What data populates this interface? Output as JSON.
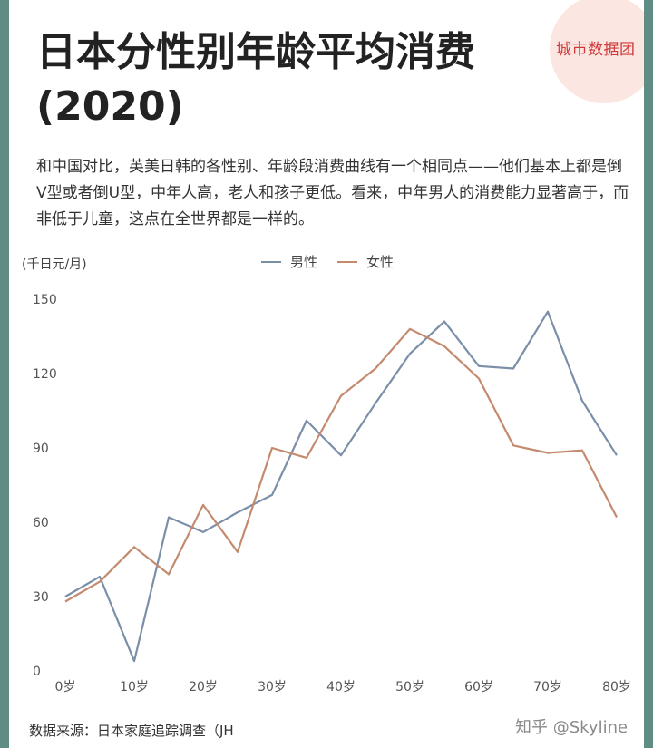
{
  "header": {
    "title": "日本分性别年龄平均消费(2020)",
    "brand": "城市数据团"
  },
  "description": "和中国对比，英美日韩的各性别、年龄段消费曲线有一个相同点——他们基本上都是倒V型或者倒U型，中年人高，老人和孩子更低。看来，中年男人的消费能力显著高于，而非低于儿童，这点在全世界都是一样的。",
  "footer": {
    "source": "数据来源：日本家庭追踪调查（JH",
    "credit": "知乎 @Skyline"
  },
  "colors": {
    "male": "#7b8fa8",
    "female": "#c48a6e"
  },
  "chart_data": {
    "type": "line",
    "unit_label": "(千日元/月)",
    "ylim": [
      0,
      150
    ],
    "yticks": [
      0,
      30,
      60,
      90,
      120,
      150
    ],
    "xlim": [
      0,
      80
    ],
    "xticks": [
      0,
      10,
      20,
      30,
      40,
      50,
      60,
      70,
      80
    ],
    "xtick_suffix": "岁",
    "legend_position": "top",
    "grid": false,
    "series": [
      {
        "name": "男性",
        "x": [
          0,
          5,
          10,
          15,
          20,
          25,
          30,
          35,
          40,
          45,
          50,
          55,
          60,
          65,
          70,
          75,
          80
        ],
        "values": [
          30,
          38,
          4,
          62,
          56,
          64,
          71,
          101,
          87,
          108,
          128,
          141,
          123,
          122,
          145,
          109,
          87
        ]
      },
      {
        "name": "女性",
        "x": [
          0,
          5,
          10,
          15,
          20,
          25,
          30,
          35,
          40,
          45,
          50,
          55,
          60,
          65,
          70,
          75,
          80
        ],
        "values": [
          28,
          36,
          50,
          39,
          67,
          48,
          90,
          86,
          111,
          122,
          138,
          131,
          118,
          91,
          88,
          89,
          62
        ]
      }
    ]
  }
}
